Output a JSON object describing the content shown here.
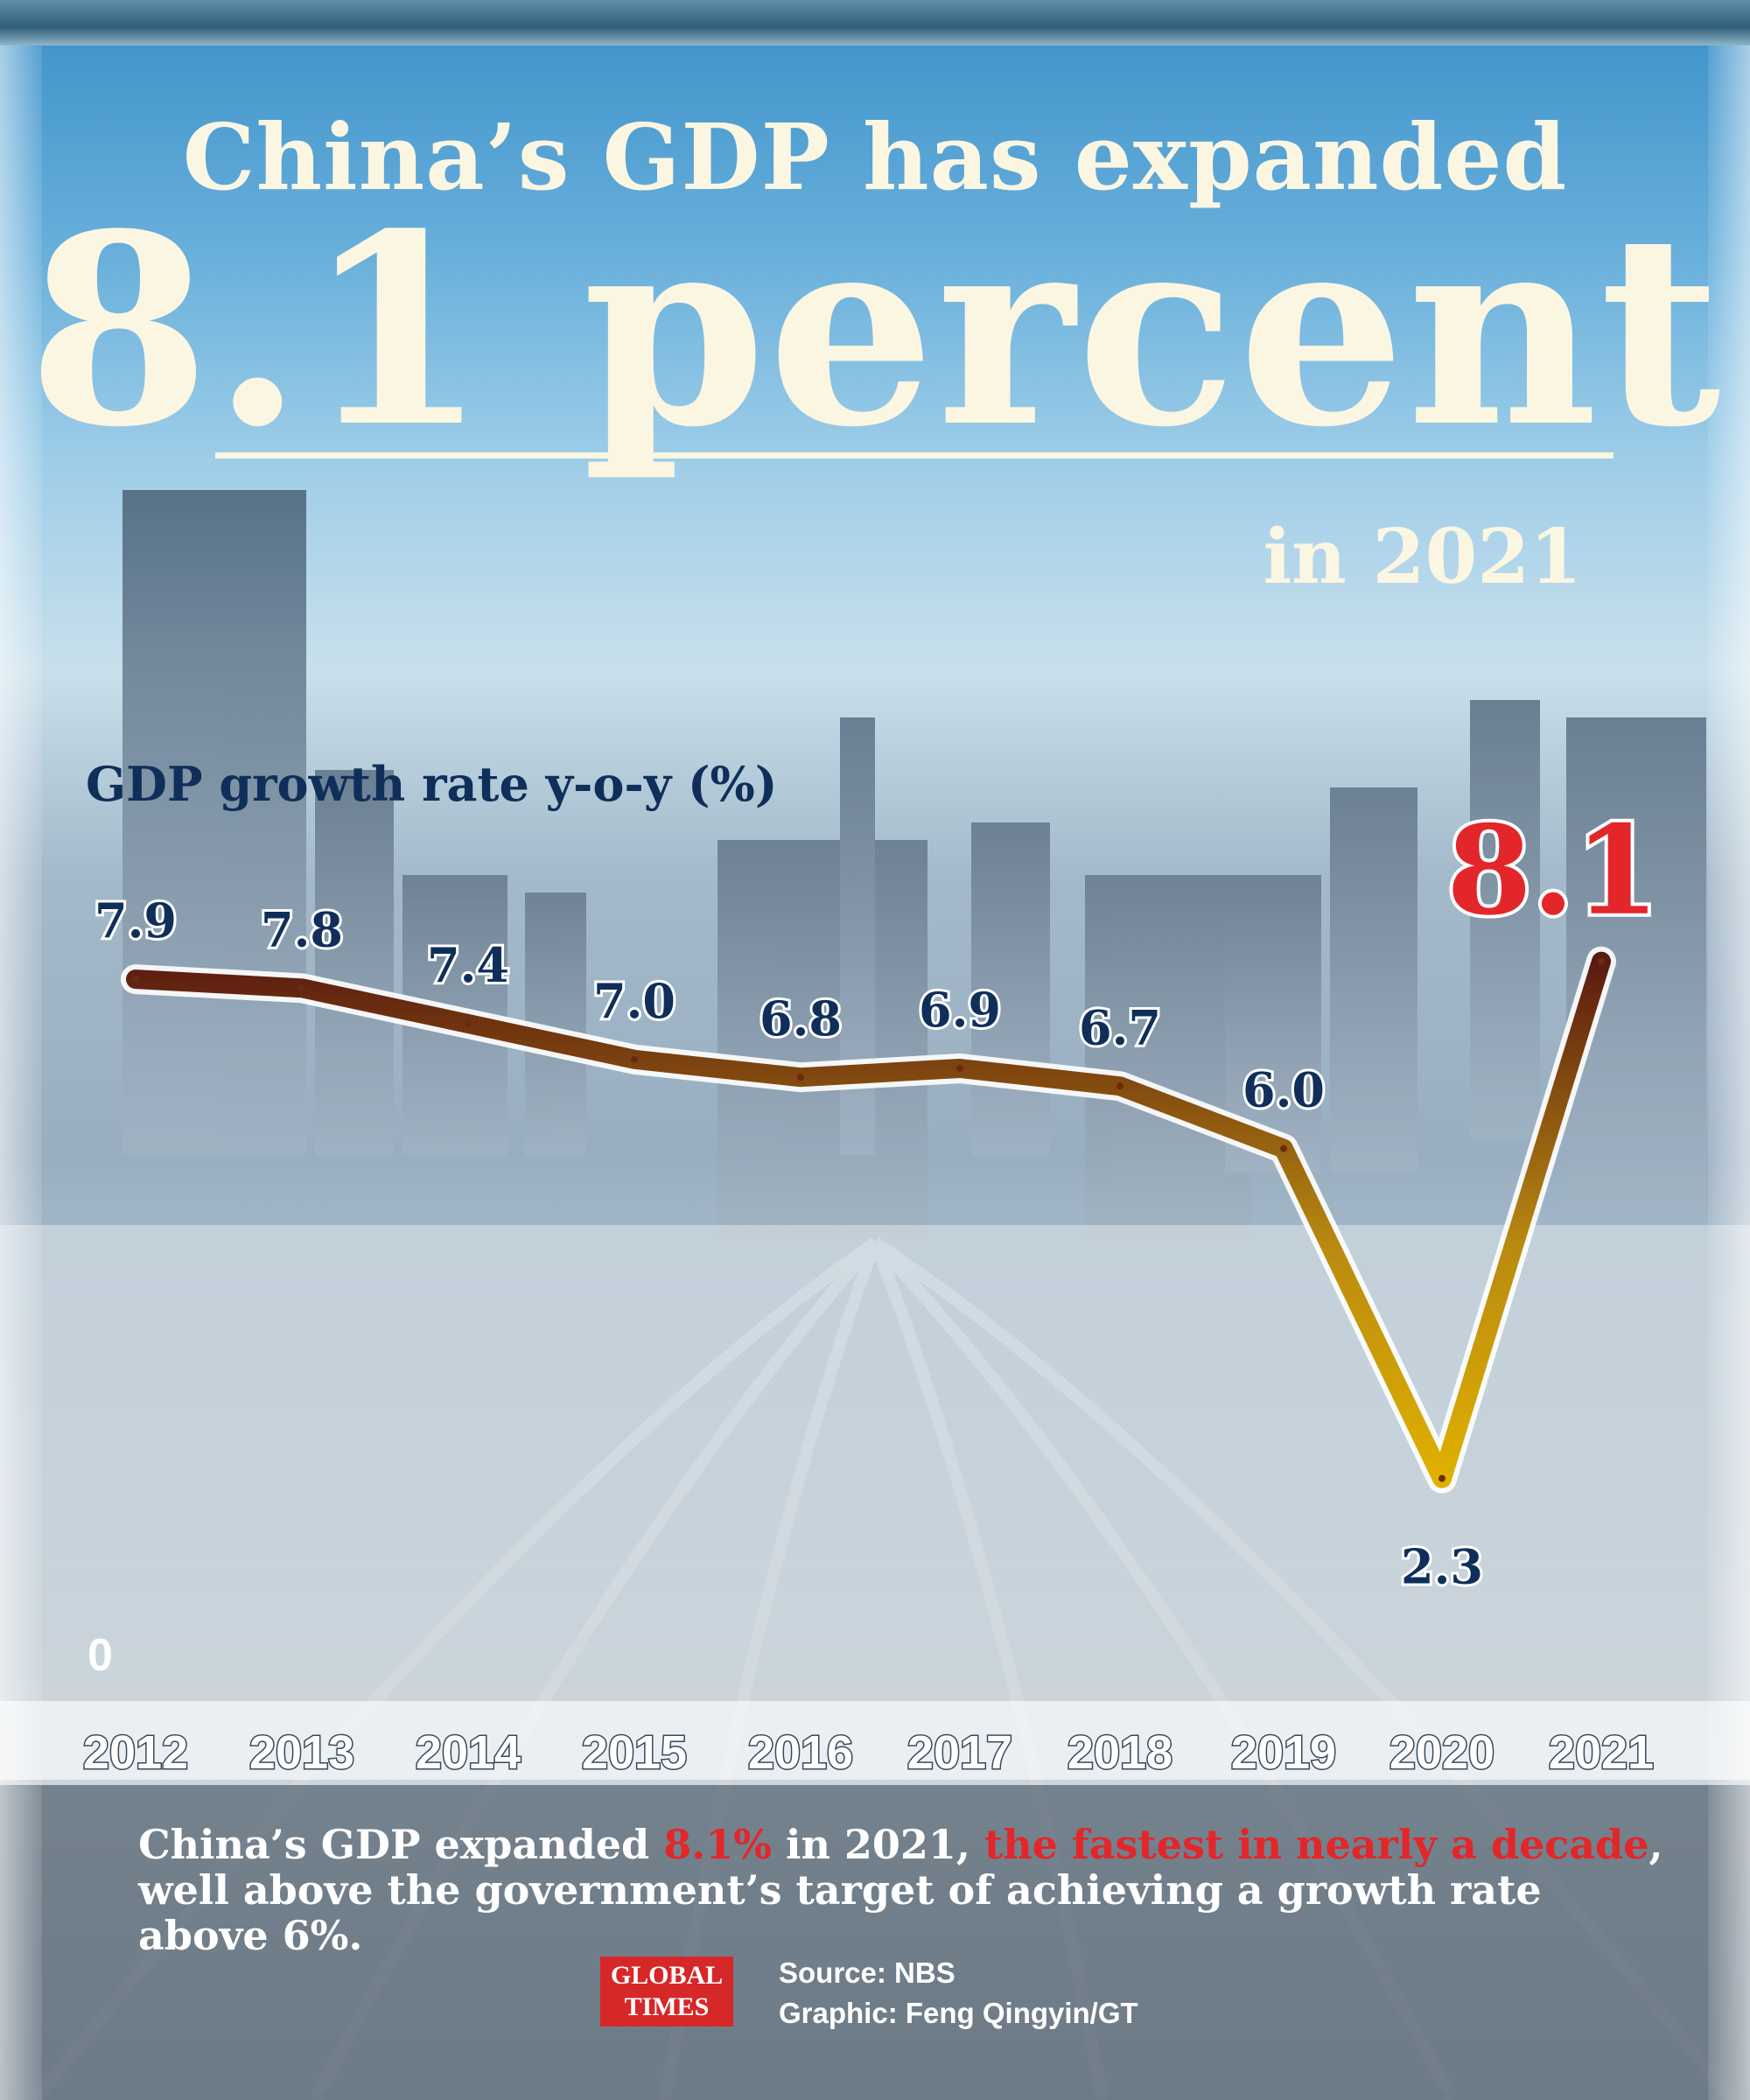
{
  "header": {
    "line1": "China’s GDP has expanded",
    "big": "8.1 percent",
    "year_line": "in 2021"
  },
  "chart_data": {
    "type": "line",
    "ylabel": "GDP growth rate y-o-y (%)",
    "ylim": [
      0,
      9
    ],
    "zero_label": "0",
    "categories": [
      "2012",
      "2013",
      "2014",
      "2015",
      "2016",
      "2017",
      "2018",
      "2019",
      "2020",
      "2021"
    ],
    "values": [
      7.9,
      7.8,
      7.4,
      7.0,
      6.8,
      6.9,
      6.7,
      6.0,
      2.3,
      8.1
    ],
    "value_labels": [
      "7.9",
      "7.8",
      "7.4",
      "7.0",
      "6.8",
      "6.9",
      "6.7",
      "6.0",
      "2.3",
      "8.1"
    ],
    "highlight_color": "#e3262a",
    "label_color": "#0f2f5a",
    "line_color": "#c99a00"
  },
  "caption": {
    "part1": "China’s GDP expanded ",
    "highlight1": "8.1%",
    "part2": " in 2021, ",
    "highlight2": "the fastest in nearly a decade",
    "part3": ", well above the government’s target of achieving a growth rate above 6%."
  },
  "footer": {
    "logo_line1": "GLOBAL",
    "logo_line2": "TIMES",
    "source": "Source: NBS",
    "graphic": "Graphic: Feng Qingyin/GT"
  }
}
